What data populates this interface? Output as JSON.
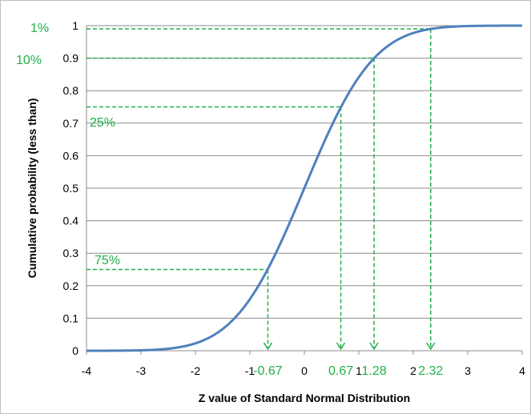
{
  "chart_data": {
    "type": "line",
    "xlabel": "Z value of Standard Normal Distribution",
    "ylabel": "Cumulative probability  (less than)",
    "xlim": [
      -4,
      4
    ],
    "ylim": [
      0,
      1
    ],
    "x_ticks": [
      "-4",
      "-3",
      "-2",
      "-1",
      "0",
      "1",
      "2",
      "3",
      "4"
    ],
    "y_ticks": [
      "0",
      "0.1",
      "0.2",
      "0.3",
      "0.4",
      "0.5",
      "0.6",
      "0.7",
      "0.8",
      "0.9",
      "1"
    ],
    "grid": "horizontal",
    "legend": "none",
    "series": [
      {
        "type": "normal-cdf",
        "mean": 0,
        "sd": 1,
        "color": "#4f81bd"
      }
    ],
    "annotations": [
      {
        "percent_label": "1%",
        "z_label": "2.32",
        "z": 2.32,
        "p": 0.99
      },
      {
        "percent_label": "10%",
        "z_label": "1.28",
        "z": 1.28,
        "p": 0.9
      },
      {
        "percent_label": "25%",
        "z_label": "0.67",
        "z": 0.67,
        "p": 0.75
      },
      {
        "percent_label": "75%",
        "z_label": "-0.67",
        "z": -0.67,
        "p": 0.25
      }
    ],
    "annotation_color": "#22b04b"
  }
}
